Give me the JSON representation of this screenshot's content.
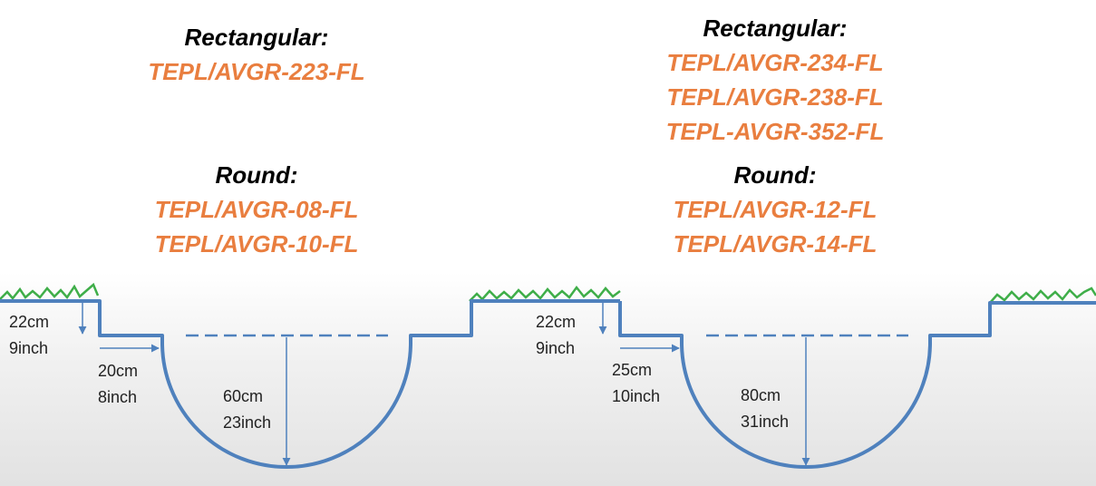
{
  "colors": {
    "heading": "#000000",
    "model_code": "#e97e3f",
    "profile_line": "#4f81bd",
    "grass": "#3fae49",
    "dimension_text": "#222222"
  },
  "left_diagram": {
    "rectangular": {
      "heading": "Rectangular:",
      "models": [
        "TEPL/AVGR-223-FL"
      ]
    },
    "round": {
      "heading": "Round:",
      "models": [
        "TEPL/AVGR-08-FL",
        "TEPL/AVGR-10-FL"
      ]
    },
    "dimensions": {
      "step_depth": {
        "cm": "22cm",
        "inch": "9inch"
      },
      "step_width": {
        "cm": "20cm",
        "inch": "8inch"
      },
      "bowl_depth": {
        "cm": "60cm",
        "inch": "23inch"
      }
    }
  },
  "right_diagram": {
    "rectangular": {
      "heading": "Rectangular:",
      "models": [
        "TEPL/AVGR-234-FL",
        "TEPL/AVGR-238-FL",
        "TEPL-AVGR-352-FL"
      ]
    },
    "round": {
      "heading": "Round:",
      "models": [
        "TEPL/AVGR-12-FL",
        "TEPL/AVGR-14-FL"
      ]
    },
    "dimensions": {
      "step_depth": {
        "cm": "22cm",
        "inch": "9inch"
      },
      "step_width": {
        "cm": "25cm",
        "inch": "10inch"
      },
      "bowl_depth": {
        "cm": "80cm",
        "inch": "31inch"
      }
    }
  }
}
